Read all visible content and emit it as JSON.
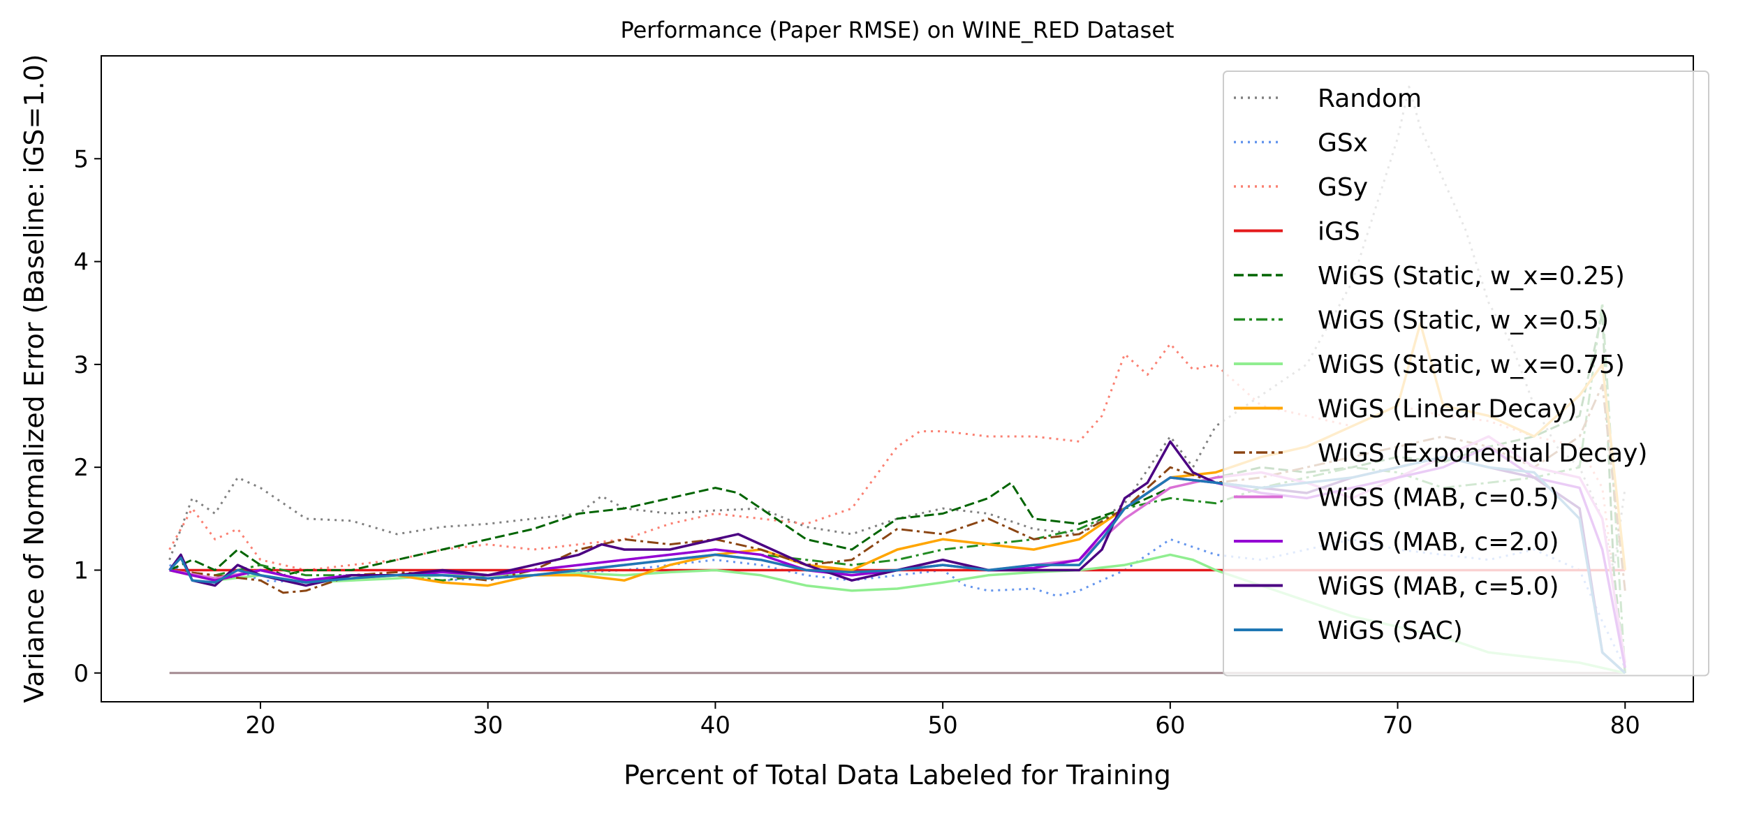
{
  "chart_data": {
    "type": "line",
    "title": "Performance (Paper RMSE) on WINE_RED Dataset",
    "xlabel": "Percent of Total Data Labeled for Training",
    "ylabel": "Variance of Normalized Error (Baseline: iGS=1.0)",
    "xlim": [
      13,
      83
    ],
    "ylim": [
      -0.28,
      6.0
    ],
    "xticks": [
      20,
      30,
      40,
      50,
      60,
      70,
      80
    ],
    "yticks": [
      0,
      1,
      2,
      3,
      4,
      5
    ],
    "grid": false,
    "legend_position": "upper right",
    "zero_line": {
      "x": [
        16,
        80
      ],
      "y": 0,
      "color": "#a38a90"
    },
    "series": [
      {
        "name": "Random",
        "color": "#808080",
        "style": "dotted",
        "x": [
          16,
          17,
          18,
          19,
          20,
          22,
          24,
          26,
          28,
          30,
          32,
          34,
          35,
          36,
          38,
          40,
          42,
          44,
          46,
          48,
          50,
          52,
          54,
          56,
          58,
          60,
          61,
          62,
          64,
          66,
          68,
          70,
          70.5,
          71,
          72,
          73,
          74,
          75,
          76,
          77,
          78,
          79,
          79.5,
          80
        ],
        "y": [
          1.1,
          1.7,
          1.55,
          1.9,
          1.8,
          1.5,
          1.48,
          1.35,
          1.42,
          1.45,
          1.5,
          1.55,
          1.72,
          1.6,
          1.55,
          1.58,
          1.6,
          1.42,
          1.35,
          1.5,
          1.6,
          1.55,
          1.4,
          1.35,
          1.65,
          2.3,
          2.0,
          2.4,
          2.7,
          3.0,
          3.8,
          5.2,
          5.7,
          5.3,
          4.8,
          4.3,
          3.6,
          3.2,
          2.6,
          2.2,
          2.0,
          1.5,
          1.0,
          1.8
        ]
      },
      {
        "name": "GSx",
        "color": "#6495ed",
        "style": "dotted",
        "x": [
          16,
          17,
          18,
          19,
          20,
          22,
          24,
          26,
          28,
          30,
          32,
          34,
          36,
          38,
          40,
          42,
          44,
          46,
          48,
          50,
          51,
          52,
          54,
          55,
          56,
          57,
          58,
          60,
          62,
          64,
          66,
          68,
          70,
          72,
          74,
          76,
          78,
          79,
          80
        ],
        "y": [
          1.05,
          0.95,
          0.9,
          1.0,
          0.9,
          0.88,
          0.92,
          0.95,
          0.9,
          0.92,
          0.95,
          0.98,
          1.0,
          1.05,
          1.1,
          1.05,
          0.95,
          0.9,
          0.95,
          1.0,
          0.85,
          0.8,
          0.82,
          0.75,
          0.8,
          0.9,
          1.0,
          1.3,
          1.15,
          1.1,
          1.2,
          1.3,
          1.2,
          1.15,
          1.1,
          1.2,
          1.0,
          0.5,
          0.05
        ]
      },
      {
        "name": "GSy",
        "color": "#fa8072",
        "style": "dotted",
        "x": [
          16,
          17,
          18,
          19,
          20,
          22,
          24,
          26,
          28,
          30,
          32,
          34,
          36,
          38,
          40,
          42,
          44,
          46,
          47,
          48,
          49,
          50,
          52,
          54,
          56,
          57,
          58,
          59,
          60,
          61,
          62,
          63,
          64,
          66,
          68,
          70,
          72,
          74,
          76,
          78,
          79,
          80
        ],
        "y": [
          1.2,
          1.6,
          1.3,
          1.4,
          1.1,
          1.0,
          1.05,
          1.1,
          1.2,
          1.25,
          1.2,
          1.25,
          1.3,
          1.45,
          1.55,
          1.5,
          1.45,
          1.6,
          1.9,
          2.2,
          2.35,
          2.35,
          2.3,
          2.3,
          2.25,
          2.5,
          3.1,
          2.9,
          3.2,
          2.95,
          3.0,
          2.8,
          2.6,
          2.5,
          2.4,
          2.6,
          2.5,
          2.45,
          2.3,
          2.2,
          1.8,
          0.05
        ]
      },
      {
        "name": "iGS",
        "color": "#e41a1c",
        "style": "solid",
        "x": [
          16,
          80
        ],
        "y": [
          1.0,
          1.0
        ]
      },
      {
        "name": "WiGS (Static, w_x=0.25)",
        "color": "#006400",
        "style": "dashed",
        "x": [
          16,
          17,
          18,
          19,
          20,
          21,
          22,
          24,
          26,
          28,
          30,
          32,
          34,
          36,
          38,
          40,
          41,
          42,
          44,
          46,
          48,
          50,
          52,
          53,
          54,
          56,
          58,
          60,
          62,
          64,
          66,
          68,
          70,
          72,
          74,
          76,
          78,
          79,
          79.5,
          80
        ],
        "y": [
          1.0,
          1.1,
          1.0,
          1.2,
          1.05,
          0.95,
          1.0,
          1.0,
          1.1,
          1.2,
          1.3,
          1.4,
          1.55,
          1.6,
          1.7,
          1.8,
          1.75,
          1.6,
          1.3,
          1.2,
          1.5,
          1.55,
          1.7,
          1.85,
          1.5,
          1.45,
          1.6,
          1.8,
          1.9,
          2.0,
          1.95,
          2.0,
          2.1,
          2.05,
          2.2,
          2.3,
          2.5,
          3.5,
          1.0,
          0.0
        ]
      },
      {
        "name": "WiGS (Static, w_x=0.5)",
        "color": "#228b22",
        "style": "dashdot",
        "x": [
          16,
          18,
          20,
          22,
          24,
          26,
          28,
          30,
          32,
          34,
          36,
          38,
          40,
          42,
          44,
          46,
          48,
          50,
          52,
          54,
          56,
          58,
          60,
          62,
          64,
          66,
          68,
          70,
          72,
          74,
          76,
          78,
          79,
          80
        ],
        "y": [
          1.0,
          0.95,
          1.05,
          0.95,
          0.95,
          0.95,
          0.9,
          0.95,
          1.0,
          1.05,
          1.1,
          1.15,
          1.2,
          1.15,
          1.1,
          1.05,
          1.1,
          1.2,
          1.25,
          1.3,
          1.4,
          1.6,
          1.7,
          1.65,
          1.8,
          1.9,
          2.0,
          1.95,
          1.8,
          1.85,
          1.9,
          2.0,
          3.6,
          0.0
        ]
      },
      {
        "name": "WiGS (Static, w_x=0.75)",
        "color": "#90ee90",
        "style": "solid",
        "x": [
          16,
          18,
          20,
          22,
          24,
          26,
          28,
          30,
          32,
          34,
          36,
          38,
          40,
          42,
          44,
          46,
          48,
          50,
          52,
          54,
          56,
          58,
          60,
          61,
          62,
          64,
          66,
          68,
          70,
          72,
          74,
          76,
          78,
          79,
          80
        ],
        "y": [
          1.0,
          0.9,
          0.95,
          0.88,
          0.9,
          0.92,
          0.95,
          0.95,
          0.95,
          0.97,
          0.95,
          0.98,
          1.0,
          0.95,
          0.85,
          0.8,
          0.82,
          0.88,
          0.95,
          0.98,
          1.0,
          1.05,
          1.15,
          1.1,
          1.0,
          0.85,
          0.7,
          0.55,
          0.45,
          0.35,
          0.2,
          0.15,
          0.1,
          0.05,
          0.0
        ]
      },
      {
        "name": "WiGS (Linear Decay)",
        "color": "#ffa500",
        "style": "solid",
        "x": [
          16,
          18,
          20,
          22,
          24,
          26,
          28,
          30,
          32,
          34,
          36,
          38,
          40,
          42,
          44,
          46,
          48,
          50,
          52,
          54,
          56,
          58,
          60,
          62,
          64,
          66,
          68,
          70,
          71,
          72,
          74,
          76,
          78,
          79,
          80
        ],
        "y": [
          1.0,
          0.9,
          1.0,
          0.9,
          0.92,
          0.95,
          0.88,
          0.85,
          0.95,
          0.95,
          0.9,
          1.05,
          1.15,
          1.2,
          1.05,
          1.0,
          1.2,
          1.3,
          1.25,
          1.2,
          1.3,
          1.6,
          1.9,
          1.95,
          2.1,
          2.2,
          2.4,
          2.6,
          3.4,
          2.6,
          2.5,
          2.3,
          2.7,
          3.0,
          1.0
        ]
      },
      {
        "name": "WiGS (Exponential Decay)",
        "color": "#8b4513",
        "style": "dashdot",
        "x": [
          16,
          18,
          20,
          21,
          22,
          24,
          26,
          28,
          30,
          32,
          34,
          36,
          38,
          40,
          42,
          44,
          46,
          48,
          50,
          52,
          54,
          56,
          58,
          60,
          62,
          64,
          66,
          68,
          70,
          72,
          74,
          76,
          78,
          79,
          80
        ],
        "y": [
          1.0,
          0.95,
          0.9,
          0.78,
          0.8,
          0.95,
          0.98,
          0.95,
          0.9,
          1.0,
          1.2,
          1.3,
          1.25,
          1.3,
          1.2,
          1.05,
          1.1,
          1.4,
          1.35,
          1.5,
          1.3,
          1.35,
          1.6,
          2.0,
          1.85,
          1.9,
          2.0,
          2.1,
          2.2,
          2.3,
          2.2,
          2.0,
          2.3,
          2.8,
          0.8
        ]
      },
      {
        "name": "WiGS (MAB, c=0.5)",
        "color": "#da70d6",
        "style": "solid",
        "x": [
          16,
          18,
          20,
          22,
          24,
          26,
          28,
          30,
          32,
          34,
          36,
          38,
          40,
          42,
          44,
          46,
          48,
          50,
          52,
          54,
          56,
          58,
          60,
          62,
          64,
          66,
          68,
          70,
          72,
          74,
          76,
          78,
          79,
          80
        ],
        "y": [
          1.0,
          0.92,
          1.0,
          0.9,
          0.95,
          0.95,
          0.95,
          0.92,
          0.95,
          1.0,
          1.05,
          1.1,
          1.15,
          1.1,
          1.0,
          0.95,
          1.0,
          1.1,
          1.0,
          1.05,
          1.1,
          1.5,
          1.8,
          1.9,
          1.95,
          1.85,
          1.7,
          1.9,
          2.1,
          2.3,
          2.0,
          1.9,
          1.5,
          0.1
        ]
      },
      {
        "name": "WiGS (MAB, c=2.0)",
        "color": "#9400d3",
        "style": "solid",
        "x": [
          16,
          18,
          20,
          22,
          24,
          26,
          28,
          30,
          32,
          34,
          36,
          38,
          40,
          42,
          44,
          46,
          48,
          50,
          52,
          54,
          56,
          58,
          60,
          62,
          64,
          66,
          68,
          70,
          72,
          74,
          76,
          78,
          79,
          80
        ],
        "y": [
          1.0,
          0.9,
          1.0,
          0.9,
          0.95,
          0.95,
          0.98,
          0.95,
          1.0,
          1.05,
          1.1,
          1.15,
          1.2,
          1.15,
          1.0,
          0.95,
          1.0,
          1.05,
          1.0,
          1.02,
          1.1,
          1.6,
          1.9,
          1.85,
          1.75,
          1.7,
          1.8,
          1.9,
          2.0,
          2.2,
          1.9,
          1.8,
          1.2,
          0.05
        ]
      },
      {
        "name": "WiGS (MAB, c=5.0)",
        "color": "#4b0082",
        "style": "solid",
        "x": [
          16,
          16.5,
          17,
          18,
          19,
          20,
          22,
          24,
          26,
          28,
          30,
          32,
          34,
          35,
          36,
          38,
          40,
          41,
          42,
          44,
          46,
          48,
          50,
          52,
          54,
          56,
          57,
          58,
          59,
          60,
          60.5,
          61,
          62,
          64,
          66,
          68,
          70,
          72,
          74,
          76,
          78,
          79,
          80
        ],
        "y": [
          1.0,
          1.15,
          0.9,
          0.85,
          1.05,
          0.95,
          0.85,
          0.95,
          0.95,
          1.0,
          0.95,
          1.05,
          1.15,
          1.25,
          1.2,
          1.2,
          1.3,
          1.35,
          1.25,
          1.05,
          0.9,
          1.0,
          1.1,
          1.0,
          1.0,
          1.0,
          1.2,
          1.7,
          1.85,
          2.25,
          2.1,
          1.95,
          1.85,
          1.8,
          1.75,
          1.9,
          2.0,
          2.1,
          2.0,
          1.9,
          1.6,
          0.2,
          0.0
        ]
      },
      {
        "name": "WiGS (SAC)",
        "color": "#1f77b4",
        "style": "solid",
        "x": [
          16,
          16.5,
          17,
          18,
          19,
          20,
          22,
          24,
          26,
          28,
          30,
          32,
          34,
          36,
          38,
          40,
          42,
          44,
          46,
          48,
          50,
          52,
          54,
          56,
          57,
          58,
          60,
          62,
          64,
          66,
          68,
          70,
          72,
          74,
          76,
          78,
          79,
          80
        ],
        "y": [
          1.0,
          1.12,
          0.9,
          0.88,
          1.0,
          0.95,
          0.88,
          0.92,
          0.95,
          0.95,
          0.92,
          0.95,
          1.0,
          1.05,
          1.1,
          1.15,
          1.1,
          1.0,
          0.98,
          1.0,
          1.05,
          1.0,
          1.05,
          1.05,
          1.3,
          1.6,
          1.9,
          1.85,
          1.8,
          1.85,
          1.9,
          2.0,
          2.1,
          2.0,
          1.95,
          1.5,
          0.2,
          0.0
        ]
      }
    ]
  }
}
